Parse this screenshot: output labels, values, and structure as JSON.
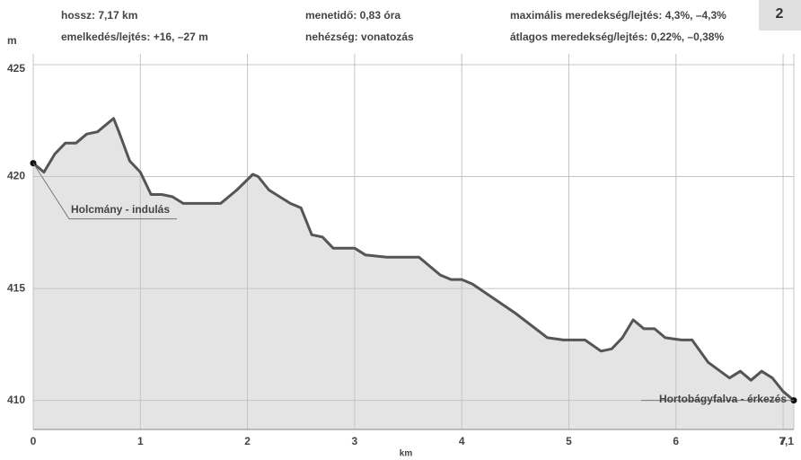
{
  "chart_data": {
    "type": "area",
    "header": [
      "hossz: 7,17 km",
      "emelkedés/lejtés: +16, –27 m",
      "menetidő: 0,83 óra",
      "nehézség: vonatozás",
      "maximális meredekség/lejtés: 4,3%, –4,3%",
      "átlagos meredekség/lejtés: 0,22%, –0,38%"
    ],
    "badge": "2",
    "y_label": "m",
    "x_label": "km",
    "start_label": "Holcmány - indulás",
    "end_label": "Hortobágyfalva - érkezés",
    "x": [
      0,
      0.1,
      0.2,
      0.3,
      0.4,
      0.5,
      0.6,
      0.7,
      0.75,
      0.8,
      0.9,
      1.0,
      1.1,
      1.2,
      1.3,
      1.4,
      1.5,
      1.6,
      1.75,
      1.9,
      2.05,
      2.1,
      2.2,
      2.4,
      2.5,
      2.6,
      2.7,
      2.8,
      3.0,
      3.1,
      3.3,
      3.6,
      3.8,
      3.9,
      4.0,
      4.1,
      4.5,
      4.8,
      4.95,
      5.15,
      5.3,
      5.4,
      5.5,
      5.6,
      5.7,
      5.8,
      5.9,
      6.05,
      6.15,
      6.3,
      6.5,
      6.6,
      6.7,
      6.8,
      6.9,
      7.0,
      7.1
    ],
    "values": [
      420.6,
      420.2,
      421.0,
      421.5,
      421.5,
      421.9,
      422.0,
      422.4,
      422.6,
      422.0,
      420.7,
      420.2,
      419.2,
      419.2,
      419.1,
      418.8,
      418.8,
      418.8,
      418.8,
      419.4,
      420.1,
      420.0,
      419.4,
      418.8,
      418.6,
      417.4,
      417.3,
      416.8,
      416.8,
      416.5,
      416.4,
      416.4,
      415.6,
      415.4,
      415.4,
      415.2,
      413.9,
      412.8,
      412.7,
      412.7,
      412.2,
      412.3,
      412.8,
      413.6,
      413.2,
      413.2,
      412.8,
      412.7,
      412.7,
      411.7,
      411.0,
      411.3,
      410.9,
      411.3,
      411.0,
      410.4,
      410.0
    ],
    "line_color": "#555555",
    "fill_color": "#e4e4e4",
    "xlim": [
      0,
      7.1
    ],
    "ylim": [
      408.7,
      425
    ],
    "xticks": [
      0,
      1,
      2,
      3,
      4,
      5,
      6,
      7,
      {
        "value": 7.1,
        "label": "7,1"
      }
    ],
    "yticks": [
      410,
      415,
      420,
      425
    ],
    "grid": true
  }
}
